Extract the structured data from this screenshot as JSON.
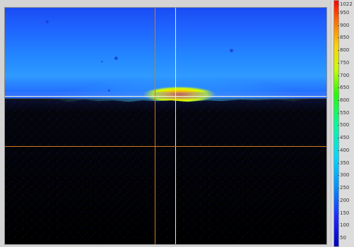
{
  "colorbar": {
    "gradient": [
      "#ff0000",
      "#ff6a00",
      "#ffd000",
      "#c8ff00",
      "#23ff00",
      "#00ff99",
      "#00d7ff",
      "#0090ff",
      "#1f2bff",
      "#0000bf"
    ],
    "ticks": [
      "1022",
      "950",
      "900",
      "850",
      "800",
      "750",
      "700",
      "650",
      "600",
      "550",
      "500",
      "450",
      "400",
      "350",
      "300",
      "250",
      "200",
      "150",
      "100",
      "50"
    ]
  },
  "cursors": {
    "orange_color": "#d27a1d",
    "yellow_color": "#f2f27a",
    "white_color": "#f6f6d8"
  }
}
